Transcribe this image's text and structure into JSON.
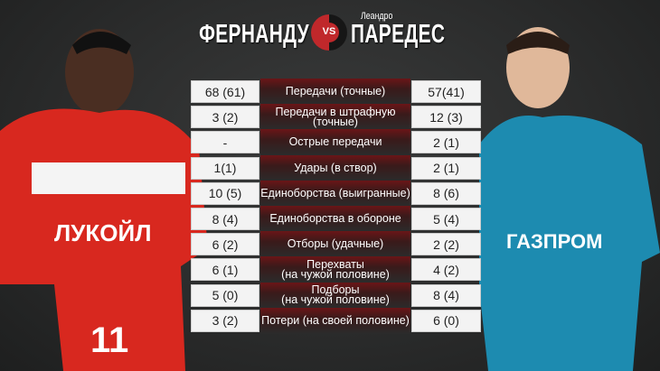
{
  "header": {
    "left_name": "ФЕРНАНДУ",
    "vs": "VS",
    "right_first_name": "Леандро",
    "right_name": "ПАРЕДЕС"
  },
  "colors": {
    "accent_red": "#c0282b",
    "spartak_red": "#d8281f",
    "zenit_blue": "#1d8bb0"
  },
  "stats": [
    {
      "label": "Передачи (точные)",
      "left": "68 (61)",
      "right": "57(41)"
    },
    {
      "label": "Передачи в штрафную\n(точные)",
      "left": "3 (2)",
      "right": "12 (3)"
    },
    {
      "label": "Острые передачи",
      "left": "-",
      "right": "2 (1)"
    },
    {
      "label": "Удары (в створ)",
      "left": "1(1)",
      "right": "2 (1)"
    },
    {
      "label": "Единоборства (выигранные)",
      "left": "10 (5)",
      "right": "8 (6)"
    },
    {
      "label": "Единоборства в обороне",
      "left": "8 (4)",
      "right": "5 (4)"
    },
    {
      "label": "Отборы (удачные)",
      "left": "6 (2)",
      "right": "2 (2)"
    },
    {
      "label": "Перехваты\n(на чужой половине)",
      "left": "6 (1)",
      "right": "4 (2)"
    },
    {
      "label": "Подборы\n(на чужой половине)",
      "left": "5 (0)",
      "right": "8 (4)"
    },
    {
      "label": "Потери (на своей половине)",
      "left": "3 (2)",
      "right": "6 (0)"
    }
  ],
  "player_left": {
    "sponsor": "ЛУКОЙЛ",
    "number": "11"
  },
  "player_right": {
    "sponsor": "ГАЗПРОМ"
  }
}
